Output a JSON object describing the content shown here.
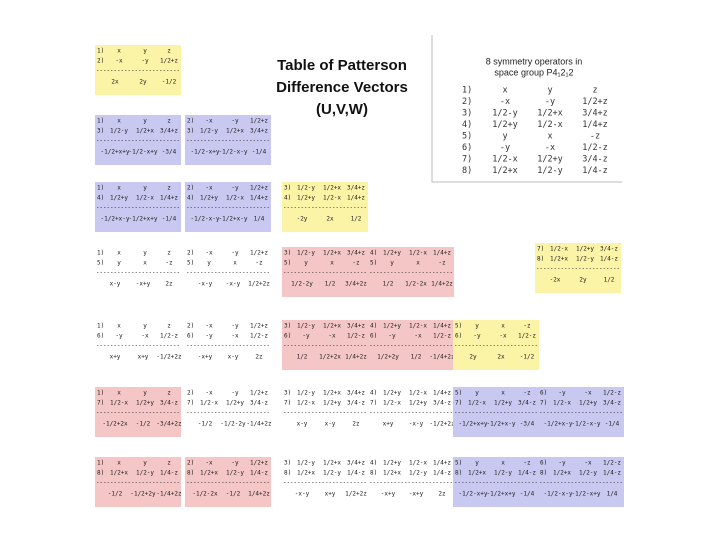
{
  "title": [
    "Table of Patterson",
    "Difference Vectors",
    "(U,V,W)"
  ],
  "symmetry": {
    "heading": [
      "8 symmetry operators in",
      "space group P4₁2₁2"
    ],
    "operators": [
      [
        "1)",
        "x",
        "y",
        "z"
      ],
      [
        "2)",
        "-x",
        "-y",
        "1/2+z"
      ],
      [
        "3)",
        "1/2-y",
        "1/2+x",
        "3/4+z"
      ],
      [
        "4)",
        "1/2+y",
        "1/2-x",
        "1/4+z"
      ],
      [
        "5)",
        "y",
        "x",
        "-z"
      ],
      [
        "6)",
        "-y",
        "-x",
        "1/2-z"
      ],
      [
        "7)",
        "1/2-x",
        "1/2+y",
        "3/4-z"
      ],
      [
        "8)",
        "1/2+x",
        "1/2-y",
        "1/4-z"
      ]
    ]
  },
  "separator": "------------------------",
  "cells": [
    {
      "color": "#fbf3a6",
      "lines": [
        [
          "1)",
          "x",
          "y",
          "z"
        ],
        [
          "2)",
          "-x",
          "-y",
          "1/2+z"
        ]
      ],
      "result": [
        "2x",
        "2y",
        "-1/2"
      ]
    },
    {
      "color": "#c8c8f0",
      "lines": [
        [
          "1)",
          "x",
          "y",
          "z"
        ],
        [
          "3)",
          "1/2-y",
          "1/2+x",
          "3/4+z"
        ]
      ],
      "result": [
        "-1/2+x+y",
        "-1/2-x+y",
        "-3/4"
      ]
    },
    {
      "color": "#c8c8f0",
      "lines": [
        [
          "2)",
          "-x",
          "-y",
          "1/2+z"
        ],
        [
          "3)",
          "1/2-y",
          "1/2+x",
          "3/4+z"
        ]
      ],
      "result": [
        "-1/2-x+y",
        "-1/2-x-y",
        "-1/4"
      ]
    },
    {
      "color": "#c8c8f0",
      "lines": [
        [
          "1)",
          "x",
          "y",
          "z"
        ],
        [
          "4)",
          "1/2+y",
          "1/2-x",
          "1/4+z"
        ]
      ],
      "result": [
        "-1/2+x-y",
        "-1/2+x+y",
        "-1/4"
      ]
    },
    {
      "color": "#c8c8f0",
      "lines": [
        [
          "2)",
          "-x",
          "-y",
          "1/2+z"
        ],
        [
          "4)",
          "1/2+y",
          "1/2-x",
          "1/4+z"
        ]
      ],
      "result": [
        "-1/2-x-y",
        "-1/2+x-y",
        "1/4"
      ]
    },
    {
      "color": "#fbf3a6",
      "lines": [
        [
          "3)",
          "1/2-y",
          "1/2+x",
          "3/4+z"
        ],
        [
          "4)",
          "1/2+y",
          "1/2-x",
          "1/4+z"
        ]
      ],
      "result": [
        "-2y",
        "2x",
        "1/2"
      ]
    },
    {
      "color": "#ffffff",
      "lines": [
        [
          "1)",
          "x",
          "y",
          "z"
        ],
        [
          "5)",
          "y",
          "x",
          "-z"
        ]
      ],
      "result": [
        "x-y",
        "-x+y",
        "2z"
      ]
    },
    {
      "color": "#ffffff",
      "lines": [
        [
          "2)",
          "-x",
          "-y",
          "1/2+z"
        ],
        [
          "5)",
          "y",
          "x",
          "-z"
        ]
      ],
      "result": [
        "-x-y",
        "-x-y",
        "1/2+2z"
      ]
    },
    {
      "color": "#f5c6c6",
      "lines": [
        [
          "3)",
          "1/2-y",
          "1/2+x",
          "3/4+z"
        ],
        [
          "5)",
          "y",
          "x",
          "-z"
        ]
      ],
      "result": [
        "1/2-2y",
        "1/2",
        "3/4+2z"
      ]
    },
    {
      "color": "#f5c6c6",
      "lines": [
        [
          "4)",
          "1/2+y",
          "1/2-x",
          "1/4+z"
        ],
        [
          "5)",
          "y",
          "x",
          "-z"
        ]
      ],
      "result": [
        "1/2",
        "1/2-2x",
        "1/4+2z"
      ]
    },
    {
      "color": "#ffffff",
      "lines": [
        [
          "1)",
          "x",
          "y",
          "z"
        ],
        [
          "6)",
          "-y",
          "-x",
          "1/2-z"
        ]
      ],
      "result": [
        "x+y",
        "x+y",
        "-1/2+2z"
      ]
    },
    {
      "color": "#ffffff",
      "lines": [
        [
          "2)",
          "-x",
          "-y",
          "1/2+z"
        ],
        [
          "6)",
          "-y",
          "-x",
          "1/2-z"
        ]
      ],
      "result": [
        "-x+y",
        "x-y",
        "2z"
      ]
    },
    {
      "color": "#f5c6c6",
      "lines": [
        [
          "3)",
          "1/2-y",
          "1/2+x",
          "3/4+z"
        ],
        [
          "6)",
          "-y",
          "-x",
          "1/2-z"
        ]
      ],
      "result": [
        "1/2",
        "1/2+2x",
        "1/4+2z"
      ]
    },
    {
      "color": "#f5c6c6",
      "lines": [
        [
          "4)",
          "1/2+y",
          "1/2-x",
          "1/4+z"
        ],
        [
          "6)",
          "-y",
          "-x",
          "1/2-z"
        ]
      ],
      "result": [
        "1/2+2y",
        "1/2",
        "-1/4+2z"
      ]
    },
    {
      "color": "#fbf3a6",
      "lines": [
        [
          "5)",
          "y",
          "x",
          "-z"
        ],
        [
          "6)",
          "-y",
          "-x",
          "1/2-z"
        ]
      ],
      "result": [
        "2y",
        "2x",
        "-1/2"
      ]
    },
    {
      "color": "#f5c6c6",
      "lines": [
        [
          "1)",
          "x",
          "y",
          "z"
        ],
        [
          "7)",
          "1/2-x",
          "1/2+y",
          "3/4-z"
        ]
      ],
      "result": [
        "-1/2+2x",
        "-1/2",
        "-3/4+2z"
      ]
    },
    {
      "color": "#ffffff",
      "lines": [
        [
          "2)",
          "-x",
          "-y",
          "1/2+z"
        ],
        [
          "7)",
          "1/2-x",
          "1/2+y",
          "3/4-z"
        ]
      ],
      "result": [
        "-1/2",
        "-1/2-2y",
        "-1/4+2z"
      ]
    },
    {
      "color": "#ffffff",
      "lines": [
        [
          "3)",
          "1/2-y",
          "1/2+x",
          "3/4+z"
        ],
        [
          "7)",
          "1/2-x",
          "1/2+y",
          "3/4-z"
        ]
      ],
      "result": [
        "x-y",
        "x-y",
        "2z"
      ]
    },
    {
      "color": "#ffffff",
      "lines": [
        [
          "4)",
          "1/2+y",
          "1/2-x",
          "1/4+z"
        ],
        [
          "7)",
          "1/2-x",
          "1/2+y",
          "3/4-z"
        ]
      ],
      "result": [
        "x+y",
        "-x-y",
        "-1/2+2z"
      ]
    },
    {
      "color": "#c8c8f0",
      "lines": [
        [
          "5)",
          "y",
          "x",
          "-z"
        ],
        [
          "7)",
          "1/2-x",
          "1/2+y",
          "3/4-z"
        ]
      ],
      "result": [
        "-1/2+x+y",
        "-1/2+x-y",
        "-3/4"
      ]
    },
    {
      "color": "#c8c8f0",
      "lines": [
        [
          "6)",
          "-y",
          "-x",
          "1/2-z"
        ],
        [
          "7)",
          "1/2-x",
          "1/2+y",
          "3/4-z"
        ]
      ],
      "result": [
        "-1/2+x-y",
        "-1/2-x-y",
        "-1/4"
      ]
    },
    {
      "color": "#f5c6c6",
      "lines": [
        [
          "1)",
          "x",
          "y",
          "z"
        ],
        [
          "8)",
          "1/2+x",
          "1/2-y",
          "1/4-z"
        ]
      ],
      "result": [
        "-1/2",
        "-1/2+2y",
        "-1/4+2z"
      ]
    },
    {
      "color": "#f5c6c6",
      "lines": [
        [
          "2)",
          "-x",
          "-y",
          "1/2+z"
        ],
        [
          "8)",
          "1/2+x",
          "1/2-y",
          "1/4-z"
        ]
      ],
      "result": [
        "-1/2-2x",
        "-1/2",
        "1/4+2z"
      ]
    },
    {
      "color": "#ffffff",
      "lines": [
        [
          "3)",
          "1/2-y",
          "1/2+x",
          "3/4+z"
        ],
        [
          "8)",
          "1/2+x",
          "1/2-y",
          "1/4-z"
        ]
      ],
      "result": [
        "-x-y",
        "x+y",
        "1/2+2z"
      ]
    },
    {
      "color": "#ffffff",
      "lines": [
        [
          "4)",
          "1/2+y",
          "1/2-x",
          "1/4+z"
        ],
        [
          "8)",
          "1/2+x",
          "1/2-y",
          "1/4-z"
        ]
      ],
      "result": [
        "-x+y",
        "-x+y",
        "2z"
      ]
    },
    {
      "color": "#c8c8f0",
      "lines": [
        [
          "5)",
          "y",
          "x",
          "-z"
        ],
        [
          "8)",
          "1/2+x",
          "1/2-y",
          "1/4-z"
        ]
      ],
      "result": [
        "-1/2-x+y",
        "-1/2+x+y",
        "-1/4"
      ]
    },
    {
      "color": "#c8c8f0",
      "lines": [
        [
          "6)",
          "-y",
          "-x",
          "1/2-z"
        ],
        [
          "8)",
          "1/2+x",
          "1/2-y",
          "1/4-z"
        ]
      ],
      "result": [
        "-1/2-x-y",
        "-1/2-x+y",
        "1/4"
      ]
    },
    {
      "color": "#fbf3a6",
      "lines": [
        [
          "7)",
          "1/2-x",
          "1/2+y",
          "3/4-z"
        ],
        [
          "8)",
          "1/2+x",
          "1/2-y",
          "1/4-z"
        ]
      ],
      "result": [
        "-2x",
        "2y",
        "1/2"
      ]
    }
  ]
}
